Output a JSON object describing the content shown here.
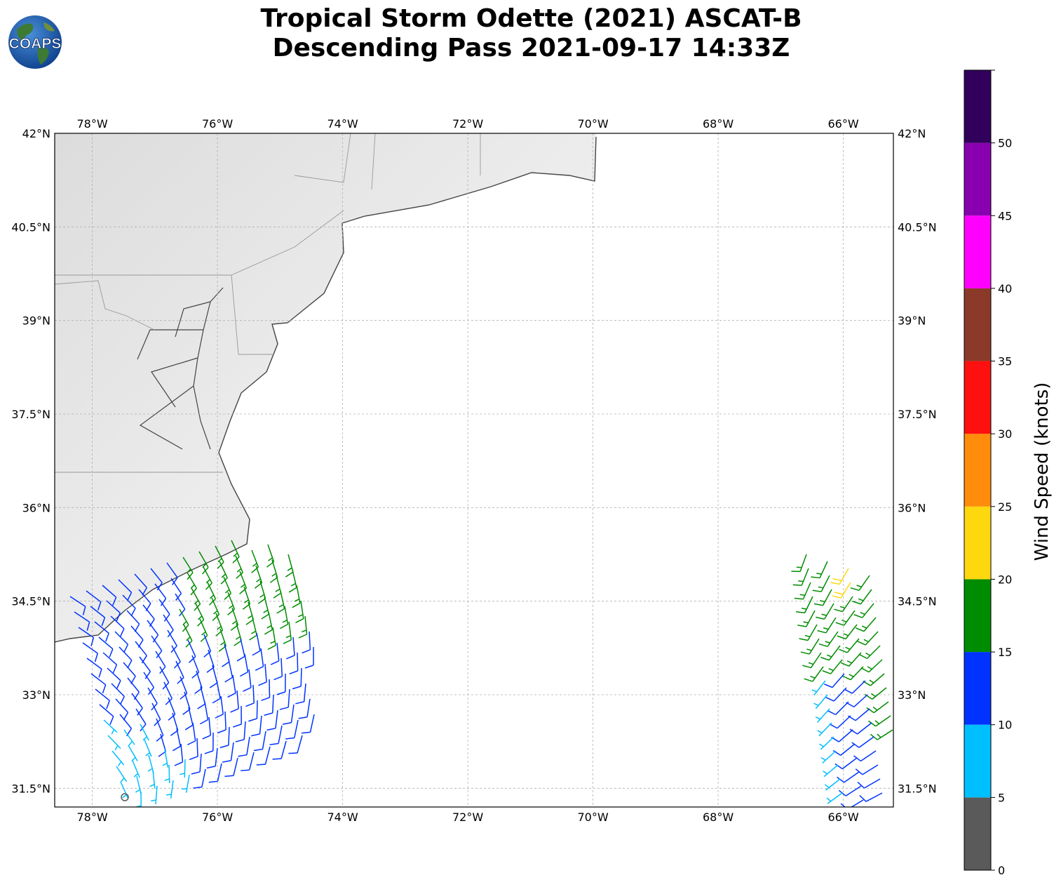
{
  "title": {
    "line1": "Tropical Storm Odette (2021) ASCAT-B",
    "line2": "Descending Pass 2021-09-17 14:33Z"
  },
  "logo": {
    "text": "COAPS",
    "icon": "globe-logo-icon"
  },
  "map": {
    "lon_range": [
      -78.6,
      -65.2
    ],
    "lat_range": [
      31.2,
      42.0
    ],
    "lon_ticks": [
      {
        "value": -78,
        "label": "78°W"
      },
      {
        "value": -76,
        "label": "76°W"
      },
      {
        "value": -74,
        "label": "74°W"
      },
      {
        "value": -72,
        "label": "72°W"
      },
      {
        "value": -70,
        "label": "70°W"
      },
      {
        "value": -68,
        "label": "68°W"
      },
      {
        "value": -66,
        "label": "66°W"
      }
    ],
    "lat_ticks": [
      {
        "value": 42.0,
        "label": "42°N"
      },
      {
        "value": 40.5,
        "label": "40.5°N"
      },
      {
        "value": 39.0,
        "label": "39°N"
      },
      {
        "value": 37.5,
        "label": "37.5°N"
      },
      {
        "value": 36.0,
        "label": "36°N"
      },
      {
        "value": 34.5,
        "label": "34.5°N"
      },
      {
        "value": 33.0,
        "label": "33°N"
      },
      {
        "value": 31.5,
        "label": "31.5°N"
      }
    ],
    "gridlines": true,
    "land_shading": "light gray terrain",
    "coastline_color": "#444444",
    "border_color": "#999999"
  },
  "colorbar": {
    "label": "Wind Speed (knots)",
    "tick_labels": [
      "0",
      "5",
      "10",
      "15",
      "20",
      "25",
      "30",
      "35",
      "40",
      "45",
      "50"
    ],
    "bins": [
      {
        "min": 0,
        "max": 5,
        "color": "#5a5a5a"
      },
      {
        "min": 5,
        "max": 10,
        "color": "#00bfff"
      },
      {
        "min": 10,
        "max": 15,
        "color": "#0033ff"
      },
      {
        "min": 15,
        "max": 20,
        "color": "#008c00"
      },
      {
        "min": 20,
        "max": 25,
        "color": "#ffd70f"
      },
      {
        "min": 25,
        "max": 30,
        "color": "#ff8c0a"
      },
      {
        "min": 30,
        "max": 35,
        "color": "#ff1010"
      },
      {
        "min": 35,
        "max": 40,
        "color": "#8b3a2a"
      },
      {
        "min": 40,
        "max": 45,
        "color": "#ff00ff"
      },
      {
        "min": 45,
        "max": 50,
        "color": "#8800b0"
      },
      {
        "min": 50,
        "max": 55,
        "color": "#30005c"
      }
    ]
  },
  "chart_data": {
    "type": "wind-barbs",
    "units": "knots",
    "swaths": [
      {
        "lon_range": [
          -78.6,
          -74.3
        ],
        "lat_range": [
          31.2,
          35.2
        ],
        "calm_corner": [
          -78.6,
          31.2
        ]
      },
      {
        "lon_range": [
          -66.8,
          -65.2
        ],
        "lat_range": [
          31.2,
          35.7
        ]
      }
    ]
  }
}
